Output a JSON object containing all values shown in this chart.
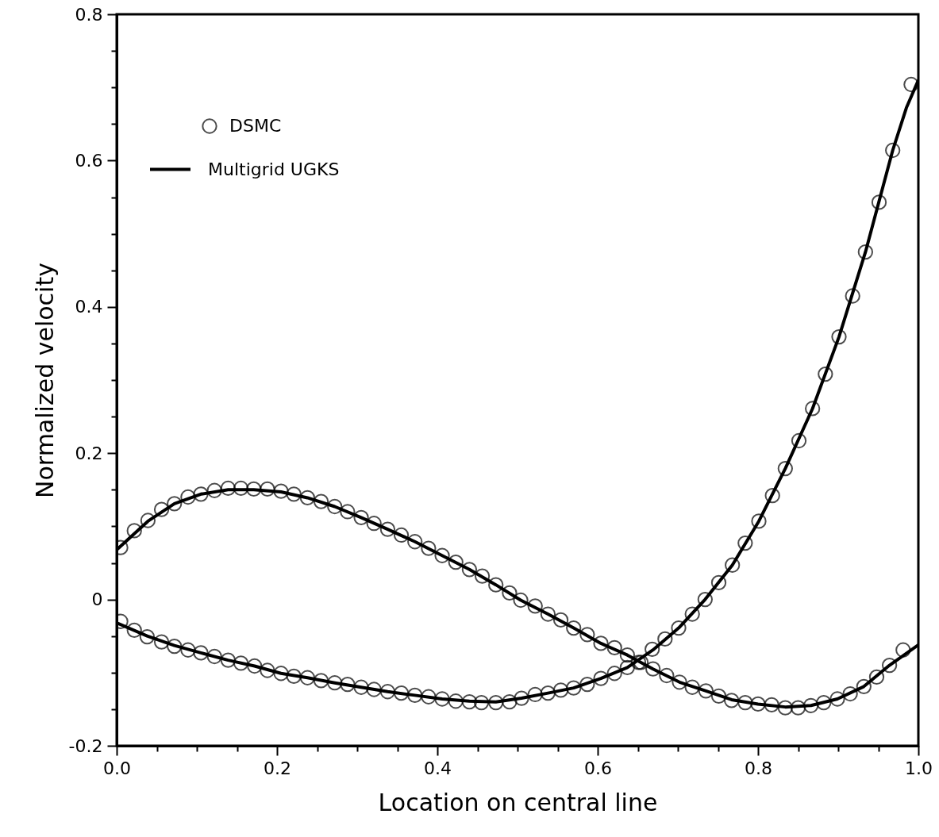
{
  "chart_data": {
    "type": "line",
    "xlabel": "Location on central line",
    "ylabel": "Normalized velocity",
    "xlim": [
      0,
      1
    ],
    "ylim": [
      -0.2,
      0.8
    ],
    "xticks": [
      {
        "value": 0,
        "label": "0.0"
      },
      {
        "value": 0.05,
        "label": null
      },
      {
        "value": 0.1,
        "label": null
      },
      {
        "value": 0.15,
        "label": null
      },
      {
        "value": 0.2,
        "label": "0.2"
      },
      {
        "value": 0.25,
        "label": null
      },
      {
        "value": 0.3,
        "label": null
      },
      {
        "value": 0.35,
        "label": null
      },
      {
        "value": 0.4,
        "label": "0.4"
      },
      {
        "value": 0.45,
        "label": null
      },
      {
        "value": 0.5,
        "label": null
      },
      {
        "value": 0.55,
        "label": null
      },
      {
        "value": 0.6,
        "label": "0.6"
      },
      {
        "value": 0.65,
        "label": null
      },
      {
        "value": 0.7,
        "label": null
      },
      {
        "value": 0.75,
        "label": null
      },
      {
        "value": 0.8,
        "label": "0.8"
      },
      {
        "value": 0.85,
        "label": null
      },
      {
        "value": 0.9,
        "label": null
      },
      {
        "value": 0.95,
        "label": null
      },
      {
        "value": 1,
        "label": "1.0"
      }
    ],
    "yticks": [
      -0.2,
      {
        "value": -0.15,
        "label": null
      },
      {
        "value": -0.1,
        "label": null
      },
      {
        "value": -0.05,
        "label": null
      },
      0,
      {
        "value": 0.05,
        "label": null
      },
      {
        "value": 0.1,
        "label": null
      },
      {
        "value": 0.15,
        "label": null
      },
      0.2,
      {
        "value": 0.25,
        "label": null
      },
      {
        "value": 0.3,
        "label": null
      },
      {
        "value": 0.35,
        "label": null
      },
      0.4,
      {
        "value": 0.45,
        "label": null
      },
      {
        "value": 0.5,
        "label": null
      },
      {
        "value": 0.55,
        "label": null
      },
      0.6,
      {
        "value": 0.65,
        "label": null
      },
      {
        "value": 0.7,
        "label": null
      },
      {
        "value": 0.75,
        "label": null
      },
      0.8
    ],
    "grid": false,
    "legend": "top left",
    "series": [
      {
        "name": "DSMC",
        "type": "scatter",
        "marker": "circle",
        "color": "#000000",
        "x": [
          0.005,
          0.022,
          0.039,
          0.056,
          0.072,
          0.089,
          0.105,
          0.122,
          0.139,
          0.155,
          0.171,
          0.188,
          0.205,
          0.221,
          0.238,
          0.255,
          0.272,
          0.288,
          0.305,
          0.321,
          0.338,
          0.355,
          0.372,
          0.389,
          0.406,
          0.423,
          0.44,
          0.456,
          0.473,
          0.49,
          0.504,
          0.522,
          0.538,
          0.554,
          0.57,
          0.587,
          0.604,
          0.621,
          0.637,
          0.654,
          0.669,
          0.686,
          0.702,
          0.718,
          0.735,
          0.751,
          0.767,
          0.784,
          0.8,
          0.817,
          0.834,
          0.85,
          0.866,
          0.882,
          0.899,
          0.915,
          0.932,
          0.948,
          0.964,
          0.981
        ],
        "values": [
          0.071,
          0.094,
          0.108,
          0.123,
          0.131,
          0.14,
          0.144,
          0.149,
          0.152,
          0.152,
          0.151,
          0.151,
          0.148,
          0.144,
          0.139,
          0.134,
          0.127,
          0.12,
          0.112,
          0.104,
          0.096,
          0.088,
          0.079,
          0.07,
          0.06,
          0.051,
          0.041,
          0.032,
          0.02,
          0.009,
          -0.001,
          -0.009,
          -0.02,
          -0.028,
          -0.039,
          -0.048,
          -0.06,
          -0.066,
          -0.076,
          -0.086,
          -0.095,
          -0.104,
          -0.113,
          -0.12,
          -0.125,
          -0.132,
          -0.138,
          -0.141,
          -0.143,
          -0.144,
          -0.148,
          -0.148,
          -0.145,
          -0.141,
          -0.136,
          -0.129,
          -0.119,
          -0.106,
          -0.09,
          -0.069
        ]
      },
      {
        "type": "scatter",
        "marker": "circle",
        "color": "#000000",
        "x": [
          0.005,
          0.022,
          0.038,
          0.056,
          0.072,
          0.089,
          0.105,
          0.122,
          0.139,
          0.155,
          0.172,
          0.188,
          0.205,
          0.221,
          0.238,
          0.255,
          0.272,
          0.288,
          0.305,
          0.321,
          0.338,
          0.355,
          0.372,
          0.389,
          0.406,
          0.423,
          0.44,
          0.455,
          0.473,
          0.49,
          0.505,
          0.522,
          0.538,
          0.554,
          0.57,
          0.587,
          0.604,
          0.621,
          0.637,
          0.651,
          0.668,
          0.684,
          0.701,
          0.718,
          0.734,
          0.751,
          0.768,
          0.784,
          0.801,
          0.818,
          0.834,
          0.851,
          0.868,
          0.884,
          0.901,
          0.918,
          0.934,
          0.951,
          0.968,
          0.991
        ],
        "values": [
          -0.03,
          -0.042,
          -0.051,
          -0.058,
          -0.064,
          -0.069,
          -0.073,
          -0.078,
          -0.083,
          -0.087,
          -0.091,
          -0.097,
          -0.101,
          -0.105,
          -0.107,
          -0.111,
          -0.114,
          -0.116,
          -0.12,
          -0.123,
          -0.126,
          -0.128,
          -0.131,
          -0.133,
          -0.136,
          -0.139,
          -0.14,
          -0.141,
          -0.141,
          -0.14,
          -0.135,
          -0.13,
          -0.128,
          -0.124,
          -0.121,
          -0.116,
          -0.108,
          -0.101,
          -0.093,
          -0.086,
          -0.068,
          -0.054,
          -0.039,
          -0.02,
          0.0,
          0.023,
          0.047,
          0.077,
          0.107,
          0.142,
          0.179,
          0.217,
          0.261,
          0.308,
          0.359,
          0.415,
          0.475,
          0.543,
          0.614,
          0.704
        ]
      },
      {
        "name": "Multigrid UGKS",
        "line_style": "solid",
        "color": "#000000",
        "x": [
          0,
          0.039,
          0.072,
          0.105,
          0.139,
          0.171,
          0.205,
          0.238,
          0.272,
          0.305,
          0.338,
          0.372,
          0.406,
          0.44,
          0.473,
          0.504,
          0.538,
          0.57,
          0.604,
          0.637,
          0.669,
          0.702,
          0.735,
          0.767,
          0.8,
          0.834,
          0.866,
          0.899,
          0.932,
          0.964,
          1
        ],
        "values": [
          0.068,
          0.107,
          0.131,
          0.144,
          0.15,
          0.15,
          0.147,
          0.139,
          0.127,
          0.112,
          0.096,
          0.079,
          0.06,
          0.041,
          0.02,
          -0.001,
          -0.02,
          -0.039,
          -0.06,
          -0.076,
          -0.095,
          -0.113,
          -0.125,
          -0.137,
          -0.143,
          -0.147,
          -0.145,
          -0.136,
          -0.119,
          -0.09,
          -0.062
        ]
      },
      {
        "line_style": "solid",
        "color": "#000000",
        "x": [
          0,
          0.038,
          0.072,
          0.105,
          0.139,
          0.172,
          0.205,
          0.238,
          0.272,
          0.305,
          0.338,
          0.372,
          0.406,
          0.44,
          0.473,
          0.505,
          0.538,
          0.57,
          0.604,
          0.637,
          0.669,
          0.701,
          0.734,
          0.768,
          0.801,
          0.834,
          0.868,
          0.901,
          0.934,
          0.968,
          0.985,
          1
        ],
        "values": [
          -0.032,
          -0.05,
          -0.063,
          -0.073,
          -0.083,
          -0.091,
          -0.101,
          -0.107,
          -0.114,
          -0.12,
          -0.126,
          -0.131,
          -0.136,
          -0.139,
          -0.14,
          -0.135,
          -0.128,
          -0.121,
          -0.108,
          -0.093,
          -0.069,
          -0.039,
          0.0,
          0.047,
          0.107,
          0.179,
          0.261,
          0.359,
          0.475,
          0.614,
          0.672,
          0.71
        ]
      }
    ]
  }
}
